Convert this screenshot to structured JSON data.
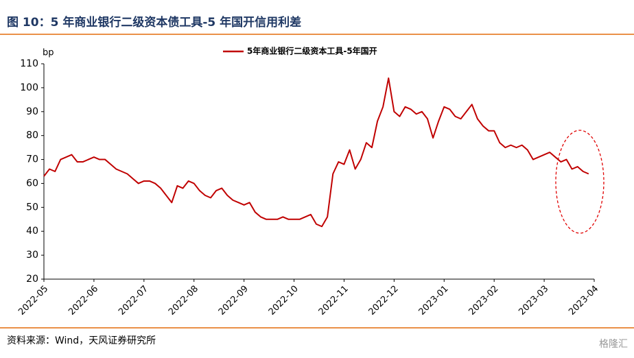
{
  "header": {
    "title": "图 10：5 年商业银行二级资本债工具-5 年国开信用利差"
  },
  "chart_data": {
    "type": "line",
    "y_unit_label": "bp",
    "categories": [
      "2022-05",
      null,
      null,
      null,
      null,
      null,
      null,
      null,
      null,
      "2022-06",
      null,
      null,
      null,
      null,
      null,
      null,
      null,
      null,
      "2022-07",
      null,
      null,
      null,
      null,
      null,
      null,
      null,
      null,
      "2022-08",
      null,
      null,
      null,
      null,
      null,
      null,
      null,
      null,
      "2022-09",
      null,
      null,
      null,
      null,
      null,
      null,
      null,
      null,
      "2022-10",
      null,
      null,
      null,
      null,
      null,
      null,
      null,
      null,
      "2022-11",
      null,
      null,
      null,
      null,
      null,
      null,
      null,
      null,
      "2022-12",
      null,
      null,
      null,
      null,
      null,
      null,
      null,
      null,
      "2023-01",
      null,
      null,
      null,
      null,
      null,
      null,
      null,
      null,
      "2023-02",
      null,
      null,
      null,
      null,
      null,
      null,
      null,
      null,
      "2023-03",
      null,
      null,
      null,
      null,
      null,
      null,
      null,
      null,
      "2023-04"
    ],
    "series": [
      {
        "name": "5年商业银行二级资本工具-5年国开",
        "color": "#c00000",
        "values": [
          63,
          66,
          65,
          70,
          71,
          72,
          69,
          69,
          70,
          71,
          70,
          70,
          68,
          66,
          65,
          64,
          62,
          60,
          61,
          61,
          60,
          58,
          55,
          52,
          59,
          58,
          61,
          60,
          57,
          55,
          54,
          57,
          58,
          55,
          53,
          52,
          51,
          52,
          48,
          46,
          45,
          45,
          45,
          46,
          45,
          45,
          45,
          46,
          47,
          43,
          42,
          46,
          64,
          69,
          68,
          74,
          66,
          70,
          77,
          75,
          86,
          92,
          104,
          90,
          88,
          92,
          91,
          89,
          90,
          87,
          79,
          86,
          92,
          91,
          88,
          87,
          90,
          93,
          87,
          84,
          82,
          82,
          77,
          75,
          76,
          75,
          76,
          74,
          70,
          71,
          72,
          73,
          71,
          69,
          70,
          66,
          67,
          65,
          64,
          null
        ]
      }
    ],
    "ylim": [
      20,
      110
    ],
    "yticks": [
      20,
      30,
      40,
      50,
      60,
      70,
      80,
      90,
      100,
      110
    ]
  },
  "footer": {
    "source": "资料来源：Wind，天风证券研究所",
    "watermark": "格隆汇"
  }
}
